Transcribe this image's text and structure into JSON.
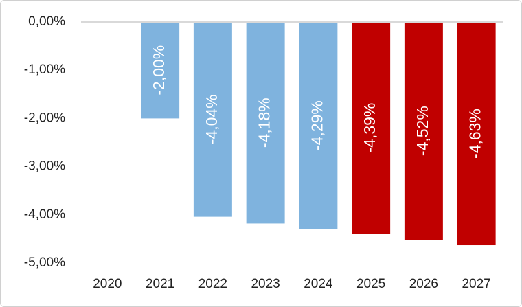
{
  "chart_data": {
    "type": "bar",
    "categories": [
      "2020",
      "2021",
      "2022",
      "2023",
      "2024",
      "2025",
      "2026",
      "2027"
    ],
    "values": [
      0,
      -2.0,
      -4.04,
      -4.18,
      -4.29,
      -4.39,
      -4.52,
      -4.63
    ],
    "value_labels": [
      null,
      "-2,00%",
      "-4,04%",
      "-4,18%",
      "-4,29%",
      "-4,39%",
      "-4,52%",
      "-4,63%"
    ],
    "colors": [
      "#7fb3de",
      "#7fb3de",
      "#7fb3de",
      "#7fb3de",
      "#7fb3de",
      "#c00000",
      "#c00000",
      "#c00000"
    ],
    "ylim": [
      -5,
      0
    ],
    "yticks": [
      {
        "value": 0,
        "label": "0,00%"
      },
      {
        "value": -1,
        "label": "-1,00%"
      },
      {
        "value": -2,
        "label": "-2,00%"
      },
      {
        "value": -3,
        "label": "-3,00%"
      },
      {
        "value": -4,
        "label": "-4,00%"
      },
      {
        "value": -5,
        "label": "-5,00%"
      }
    ],
    "grid": false
  }
}
